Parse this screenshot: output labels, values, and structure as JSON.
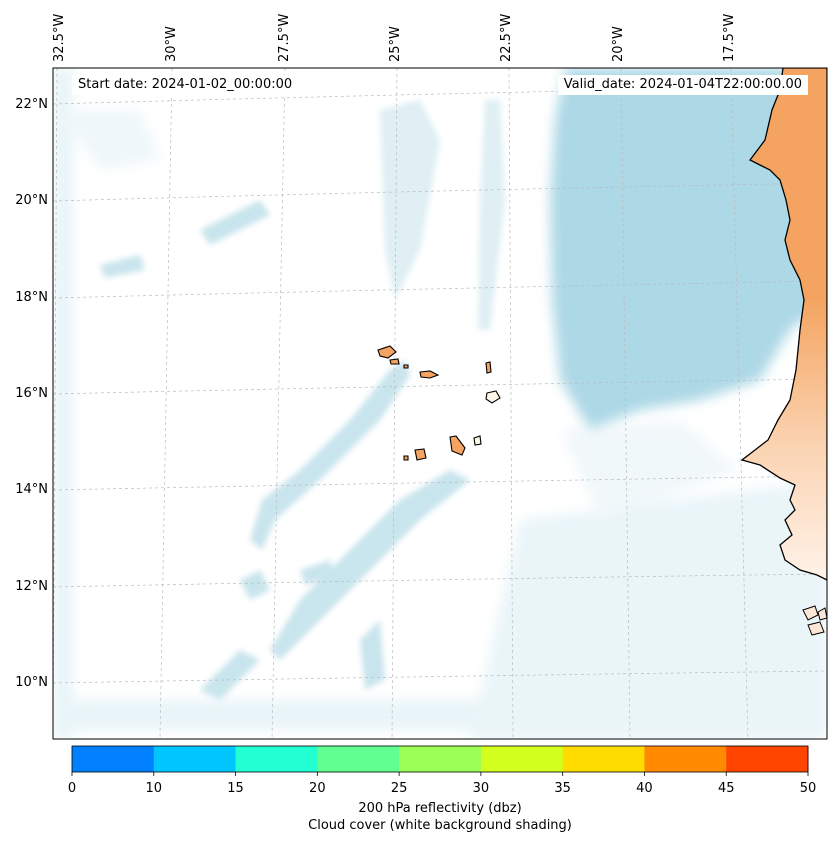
{
  "header": {
    "start_date": "Start date: 2024-01-02_00:00:00",
    "valid_date": "Valid_date: 2024-01-04T22:00:00.00"
  },
  "axes": {
    "longitude_labels": [
      "32.5°W",
      "30°W",
      "27.5°W",
      "25°W",
      "22.5°W",
      "20°W",
      "17.5°W"
    ],
    "latitude_labels": [
      "22°N",
      "20°N",
      "18°N",
      "16°N",
      "14°N",
      "12°N",
      "10°N"
    ]
  },
  "colorbar": {
    "ticks": [
      "0",
      "10",
      "15",
      "20",
      "25",
      "30",
      "35",
      "40",
      "45",
      "50"
    ],
    "colors": [
      "#0080ff",
      "#00c5ff",
      "#22ffd3",
      "#60ff8f",
      "#9cff56",
      "#d2ff1d",
      "#ffdc00",
      "#ff8a00",
      "#ff4500"
    ],
    "label_line1": "200 hPa reflectivity (dbz)",
    "label_line2": "Cloud cover (white background shading)"
  },
  "map": {
    "land_color": "#f4a460",
    "ocean_cloud_color": "#add8e6",
    "coastline_color": "#000000"
  }
}
